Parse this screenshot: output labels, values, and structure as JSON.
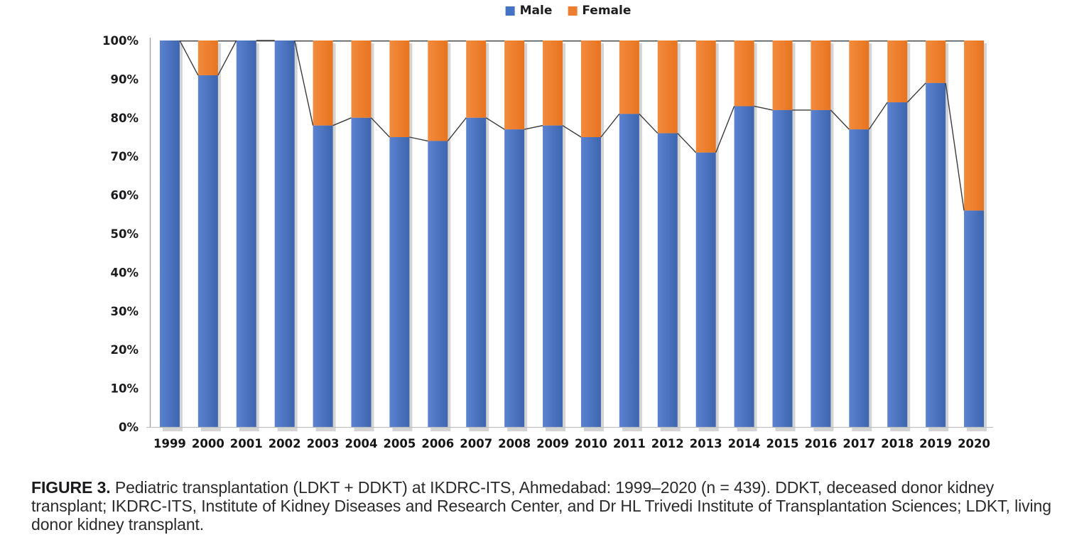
{
  "legend": {
    "items": [
      {
        "label": "Male",
        "color": "#4472C4"
      },
      {
        "label": "Female",
        "color": "#ED7D31"
      }
    ]
  },
  "chart_data": {
    "type": "bar",
    "subtype": "stacked-100-percent-column",
    "title": "",
    "xlabel": "",
    "ylabel": "",
    "categories": [
      "1999",
      "2000",
      "2001",
      "2002",
      "2003",
      "2004",
      "2005",
      "2006",
      "2007",
      "2008",
      "2009",
      "2010",
      "2011",
      "2012",
      "2013",
      "2014",
      "2015",
      "2016",
      "2017",
      "2018",
      "2019",
      "2020"
    ],
    "series": [
      {
        "name": "Male",
        "color": "#4472C4",
        "values": [
          100,
          91,
          100,
          100,
          78,
          80,
          75,
          74,
          80,
          77,
          78,
          75,
          81,
          76,
          71,
          83,
          82,
          82,
          77,
          84,
          89,
          56
        ]
      },
      {
        "name": "Female",
        "color": "#ED7D31",
        "values": [
          0,
          9,
          0,
          0,
          22,
          20,
          25,
          26,
          20,
          23,
          22,
          25,
          19,
          24,
          29,
          17,
          18,
          18,
          23,
          16,
          11,
          44
        ]
      }
    ],
    "yticks": [
      "0%",
      "10%",
      "20%",
      "30%",
      "40%",
      "50%",
      "60%",
      "70%",
      "80%",
      "90%",
      "100%"
    ],
    "ylim": [
      0,
      100
    ],
    "grid": false,
    "legend_position": "top-center",
    "series_connector_lines": true
  },
  "caption": {
    "label": "FIGURE 3.",
    "text": "Pediatric transplantation (LDKT + DDKT) at IKDRC-ITS, Ahmedabad: 1999–2020 (n = 439). DDKT, deceased donor kidney transplant; IKDRC-ITS, Institute of Kidney Diseases and Research Center, and Dr HL Trivedi Institute of Transplantation Sciences; LDKT, living donor kidney transplant."
  }
}
